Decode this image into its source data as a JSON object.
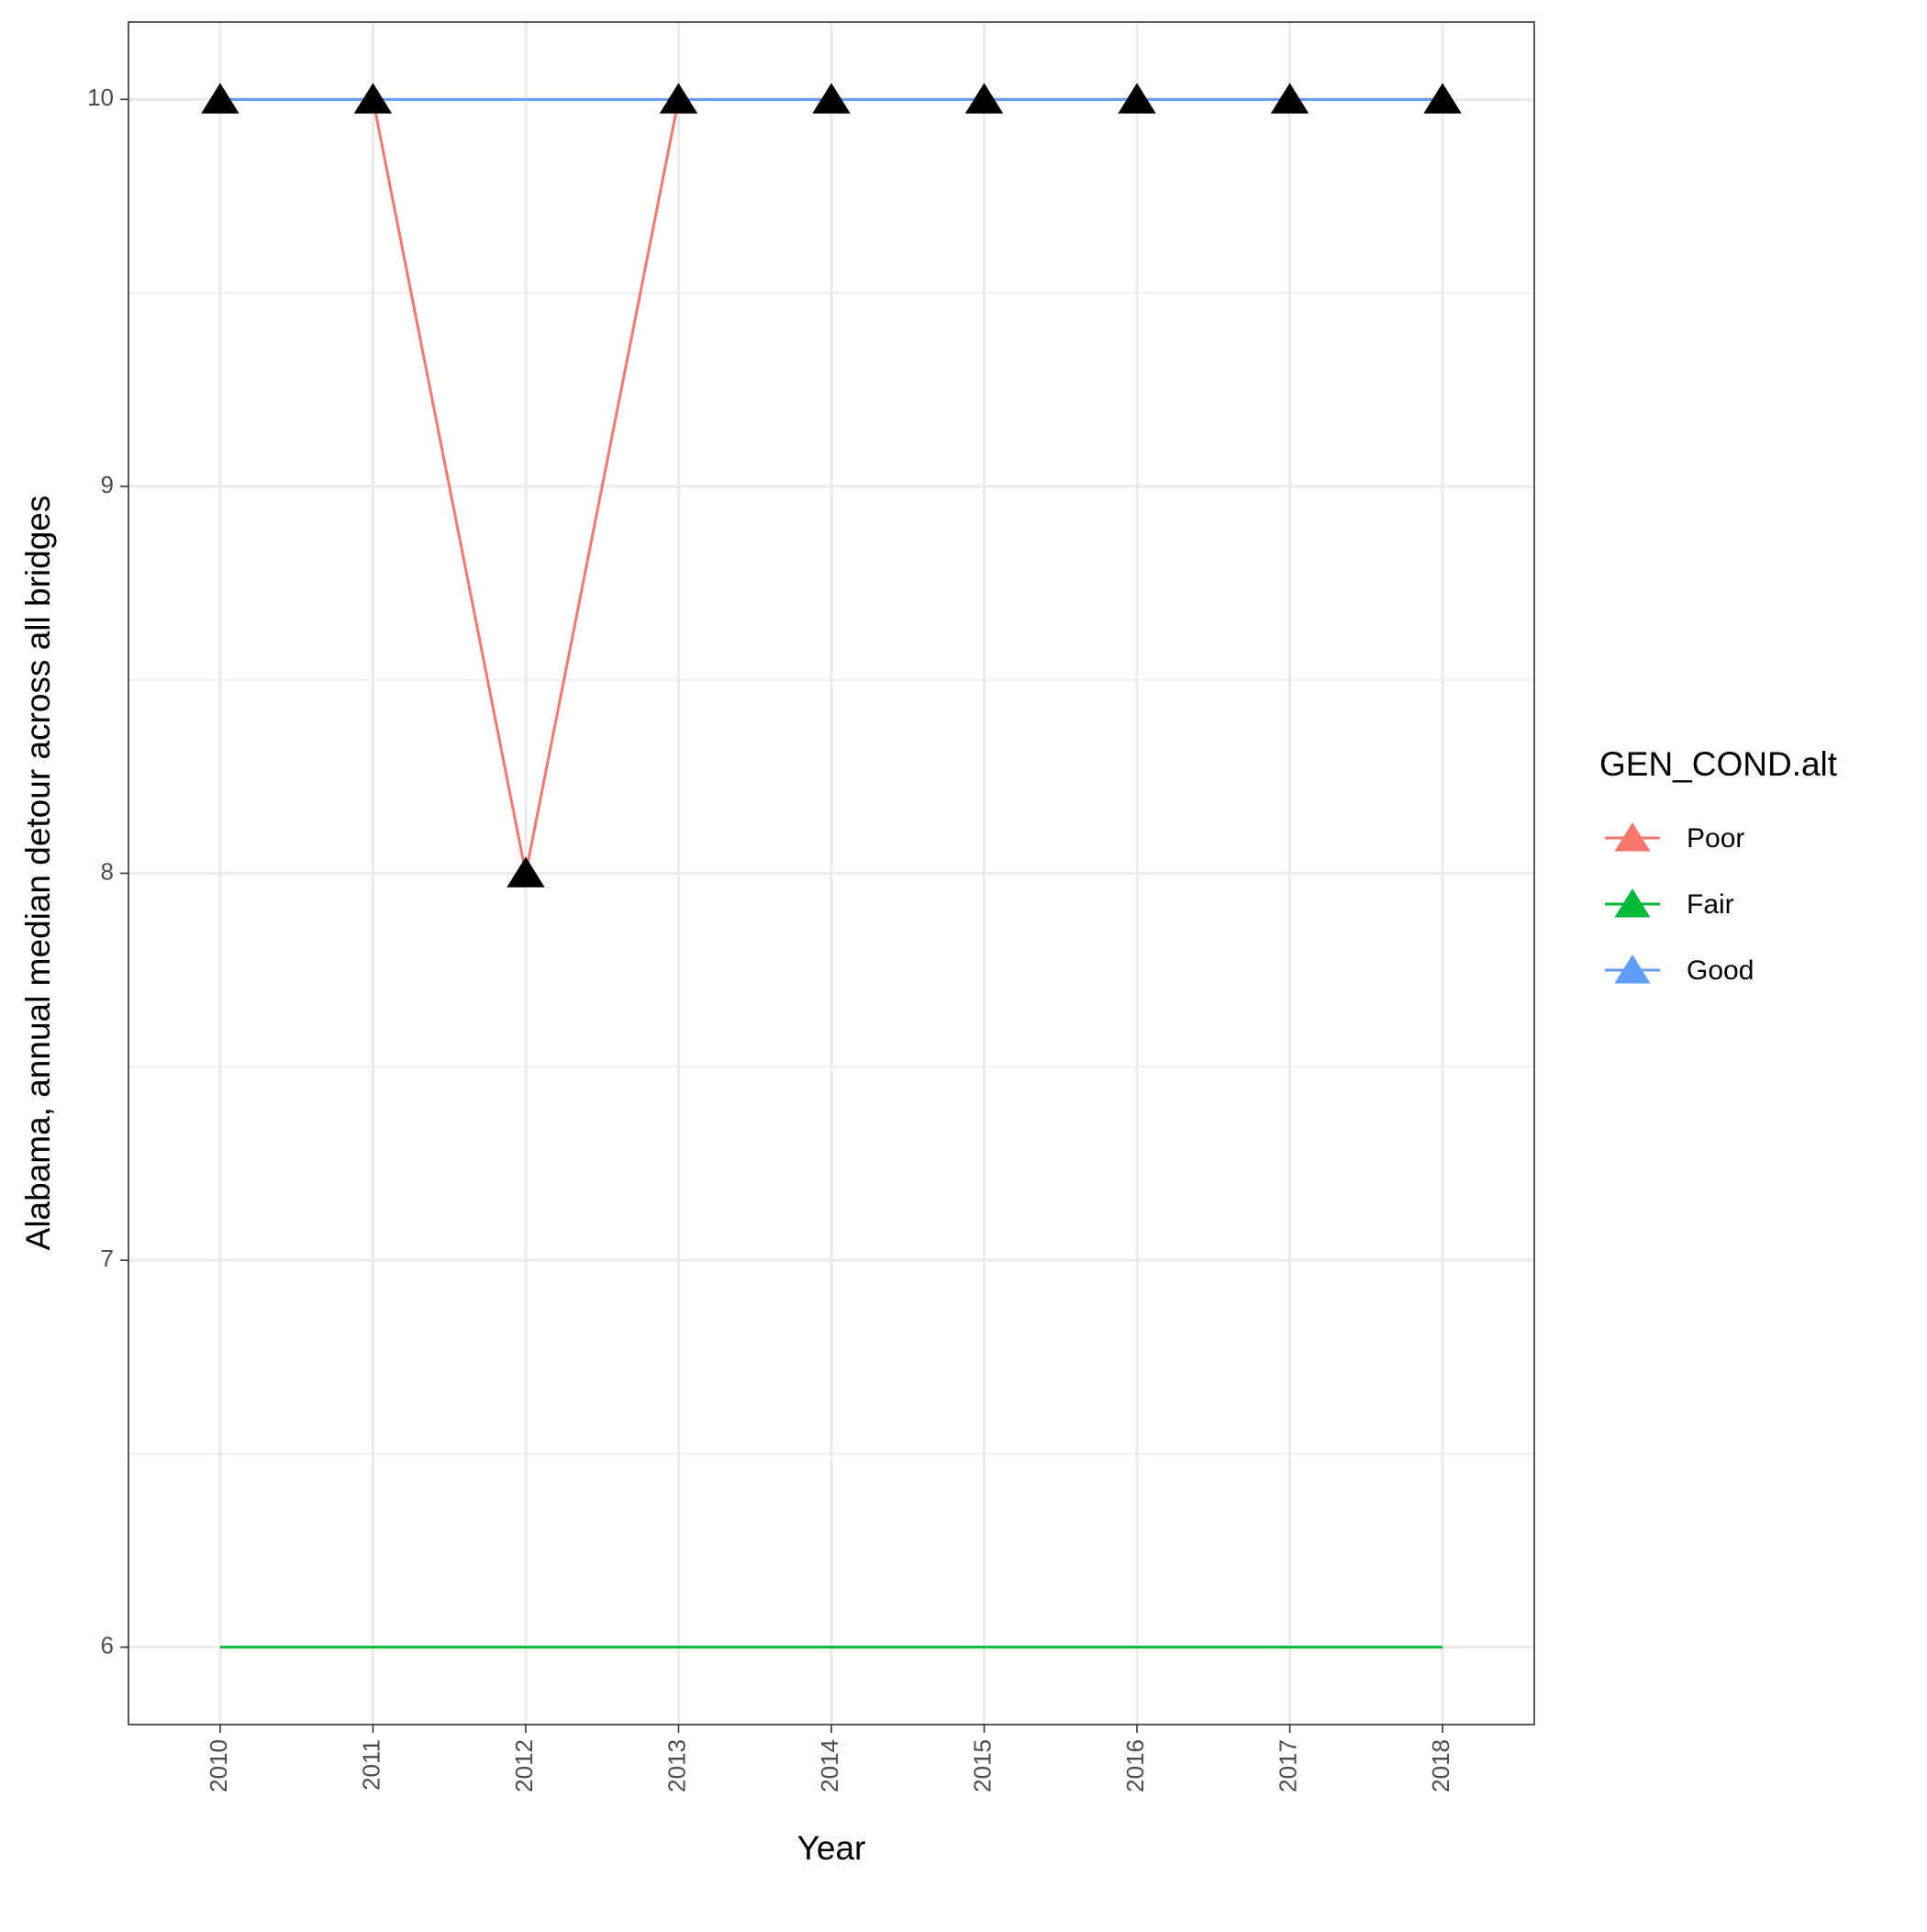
{
  "chart_data": {
    "type": "line",
    "x_label": "Year",
    "y_label": "Alabama, annual median detour across all bridges",
    "x": [
      2010,
      2011,
      2012,
      2013,
      2014,
      2015,
      2016,
      2017,
      2018
    ],
    "xlim": [
      2009.4,
      2018.6
    ],
    "xticks": [
      2010,
      2011,
      2012,
      2013,
      2014,
      2015,
      2016,
      2017,
      2018
    ],
    "ylim": [
      5.8,
      10.2
    ],
    "yticks": [
      6,
      7,
      8,
      9,
      10
    ],
    "grid": true,
    "legend_title": "GEN_COND.alt",
    "legend_position": "right",
    "series": [
      {
        "name": "Poor",
        "color": "#F8766D",
        "marker_color": "#000000",
        "values": [
          10,
          10,
          8,
          10,
          10,
          10,
          10,
          10,
          10
        ]
      },
      {
        "name": "Fair",
        "color": "#00BA38",
        "values": [
          6,
          6,
          6,
          6,
          6,
          6,
          6,
          6,
          6
        ]
      },
      {
        "name": "Good",
        "color": "#619CFF",
        "values": [
          10,
          10,
          10,
          10,
          10,
          10,
          10,
          10,
          10
        ]
      }
    ]
  }
}
